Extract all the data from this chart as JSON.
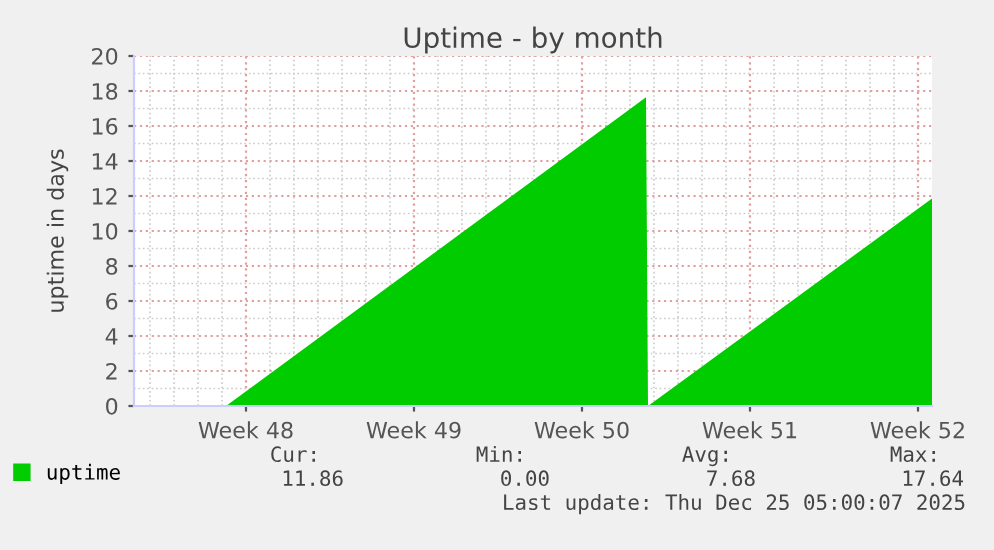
{
  "chart_data": {
    "type": "area",
    "title": "Uptime - by month",
    "ylabel": "uptime in days",
    "x": [
      "2025-11-22T08:00",
      "2025-11-26T04:00",
      "2025-12-13T16:00",
      "2025-12-13T18:00",
      "2025-12-25T14:00"
    ],
    "series": [
      {
        "name": "uptime",
        "color": "#00cc00",
        "values": [
          0,
          0,
          17.64,
          0,
          11.86
        ]
      }
    ],
    "xlim": [
      "2025-11-22T08:00",
      "2025-12-25T14:00"
    ],
    "xticks": [
      {
        "value": "2025-11-27",
        "label": "Week 48"
      },
      {
        "value": "2025-12-04",
        "label": "Week 49"
      },
      {
        "value": "2025-12-11",
        "label": "Week 50"
      },
      {
        "value": "2025-12-18",
        "label": "Week 51"
      },
      {
        "value": "2025-12-25",
        "label": "Week 52"
      }
    ],
    "ylim": [
      0,
      20
    ],
    "yticks": [
      0,
      2,
      4,
      6,
      8,
      10,
      12,
      14,
      16,
      18,
      20
    ],
    "grid": true,
    "legend": "bottom left",
    "annotations": [
      "Cur:",
      "Min:",
      "Avg:",
      "Max:",
      "11.86",
      "0.00",
      "7.68",
      "17.64",
      "Last update: Thu Dec 25 05:00:07 2025"
    ]
  }
}
